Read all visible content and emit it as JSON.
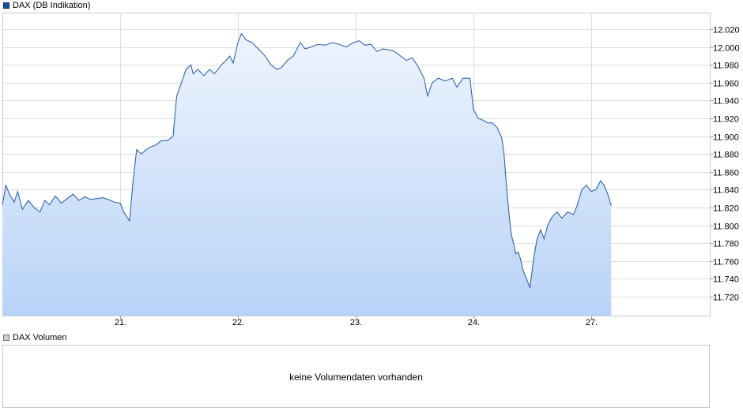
{
  "legend": {
    "price_label": "DAX (DB Indikation)",
    "volume_label": "DAX Volumen"
  },
  "volume_panel": {
    "message": "keine Volumendaten vorhanden"
  },
  "colors": {
    "line": "#1f5aa8",
    "area_top": "#eef4fd",
    "area_bottom": "#b9d3f7",
    "grid": "#dddddd"
  },
  "chart_data": {
    "type": "area",
    "title": "",
    "xlabel": "",
    "ylabel": "",
    "x_ticks": [
      {
        "label": "21.",
        "x": 1
      },
      {
        "label": "22.",
        "x": 2
      },
      {
        "label": "23.",
        "x": 3
      },
      {
        "label": "24.",
        "x": 4
      },
      {
        "label": "27.",
        "x": 5
      }
    ],
    "xlim": [
      0,
      5.7
    ],
    "ylim": [
      11700,
      12030
    ],
    "y_ticks": [
      {
        "value": 11720,
        "label": "11.720"
      },
      {
        "value": 11740,
        "label": "11.740"
      },
      {
        "value": 11760,
        "label": "11.760"
      },
      {
        "value": 11780,
        "label": "11.780"
      },
      {
        "value": 11800,
        "label": "11.800"
      },
      {
        "value": 11820,
        "label": "11.820"
      },
      {
        "value": 11840,
        "label": "11.840"
      },
      {
        "value": 11860,
        "label": "11.860"
      },
      {
        "value": 11880,
        "label": "11.880"
      },
      {
        "value": 11900,
        "label": "11.900"
      },
      {
        "value": 11920,
        "label": "11.920"
      },
      {
        "value": 11940,
        "label": "11.940"
      },
      {
        "value": 11960,
        "label": "11.960"
      },
      {
        "value": 11980,
        "label": "11.980"
      },
      {
        "value": 12000,
        "label": "12.000"
      },
      {
        "value": 12020,
        "label": "12.020"
      }
    ],
    "grid": true,
    "series": [
      {
        "points": [
          [
            0.0,
            11823
          ],
          [
            0.03,
            11845
          ],
          [
            0.06,
            11835
          ],
          [
            0.1,
            11826
          ],
          [
            0.13,
            11838
          ],
          [
            0.17,
            11818
          ],
          [
            0.22,
            11828
          ],
          [
            0.27,
            11820
          ],
          [
            0.32,
            11815
          ],
          [
            0.36,
            11828
          ],
          [
            0.4,
            11823
          ],
          [
            0.45,
            11833
          ],
          [
            0.5,
            11825
          ],
          [
            0.55,
            11830
          ],
          [
            0.6,
            11835
          ],
          [
            0.65,
            11828
          ],
          [
            0.7,
            11832
          ],
          [
            0.75,
            11829
          ],
          [
            0.8,
            11830
          ],
          [
            0.85,
            11831
          ],
          [
            0.9,
            11829
          ],
          [
            0.95,
            11826
          ],
          [
            1.0,
            11825
          ],
          [
            1.03,
            11815
          ],
          [
            1.08,
            11805
          ],
          [
            1.11,
            11850
          ],
          [
            1.14,
            11885
          ],
          [
            1.18,
            11880
          ],
          [
            1.22,
            11885
          ],
          [
            1.26,
            11888
          ],
          [
            1.3,
            11890
          ],
          [
            1.35,
            11895
          ],
          [
            1.4,
            11895
          ],
          [
            1.45,
            11900
          ],
          [
            1.48,
            11945
          ],
          [
            1.52,
            11960
          ],
          [
            1.56,
            11975
          ],
          [
            1.6,
            11980
          ],
          [
            1.62,
            11970
          ],
          [
            1.66,
            11975
          ],
          [
            1.71,
            11968
          ],
          [
            1.76,
            11975
          ],
          [
            1.8,
            11970
          ],
          [
            1.86,
            11980
          ],
          [
            1.9,
            11985
          ],
          [
            1.93,
            11990
          ],
          [
            1.96,
            11982
          ],
          [
            2.0,
            12005
          ],
          [
            2.03,
            12015
          ],
          [
            2.07,
            12008
          ],
          [
            2.12,
            12005
          ],
          [
            2.18,
            11997
          ],
          [
            2.23,
            11990
          ],
          [
            2.28,
            11980
          ],
          [
            2.33,
            11975
          ],
          [
            2.37,
            11977
          ],
          [
            2.42,
            11985
          ],
          [
            2.47,
            11990
          ],
          [
            2.53,
            12005
          ],
          [
            2.57,
            11998
          ],
          [
            2.62,
            12000
          ],
          [
            2.68,
            12003
          ],
          [
            2.74,
            12002
          ],
          [
            2.8,
            12005
          ],
          [
            2.86,
            12003
          ],
          [
            2.92,
            12000
          ],
          [
            2.98,
            12005
          ],
          [
            3.03,
            12007
          ],
          [
            3.08,
            12002
          ],
          [
            3.13,
            12003
          ],
          [
            3.18,
            11995
          ],
          [
            3.23,
            11998
          ],
          [
            3.28,
            11997
          ],
          [
            3.33,
            11995
          ],
          [
            3.38,
            11990
          ],
          [
            3.43,
            11985
          ],
          [
            3.48,
            11988
          ],
          [
            3.53,
            11978
          ],
          [
            3.58,
            11965
          ],
          [
            3.61,
            11945
          ],
          [
            3.65,
            11960
          ],
          [
            3.7,
            11965
          ],
          [
            3.76,
            11962
          ],
          [
            3.82,
            11965
          ],
          [
            3.86,
            11955
          ],
          [
            3.91,
            11965
          ],
          [
            3.97,
            11965
          ],
          [
            4.0,
            11930
          ],
          [
            4.04,
            11920
          ],
          [
            4.08,
            11918
          ],
          [
            4.12,
            11915
          ],
          [
            4.16,
            11915
          ],
          [
            4.2,
            11910
          ],
          [
            4.24,
            11898
          ],
          [
            4.26,
            11880
          ],
          [
            4.28,
            11845
          ],
          [
            4.3,
            11815
          ],
          [
            4.32,
            11790
          ],
          [
            4.34,
            11780
          ],
          [
            4.36,
            11768
          ],
          [
            4.38,
            11770
          ],
          [
            4.4,
            11762
          ],
          [
            4.42,
            11750
          ],
          [
            4.45,
            11740
          ],
          [
            4.48,
            11730
          ],
          [
            4.51,
            11762
          ],
          [
            4.54,
            11785
          ],
          [
            4.57,
            11795
          ],
          [
            4.6,
            11785
          ],
          [
            4.63,
            11800
          ],
          [
            4.67,
            11810
          ],
          [
            4.71,
            11815
          ],
          [
            4.75,
            11808
          ],
          [
            4.8,
            11815
          ],
          [
            4.85,
            11812
          ],
          [
            4.88,
            11822
          ],
          [
            4.92,
            11840
          ],
          [
            4.96,
            11845
          ],
          [
            5.0,
            11838
          ],
          [
            5.04,
            11840
          ],
          [
            5.08,
            11850
          ],
          [
            5.11,
            11845
          ],
          [
            5.14,
            11835
          ],
          [
            5.17,
            11822
          ]
        ]
      }
    ]
  }
}
